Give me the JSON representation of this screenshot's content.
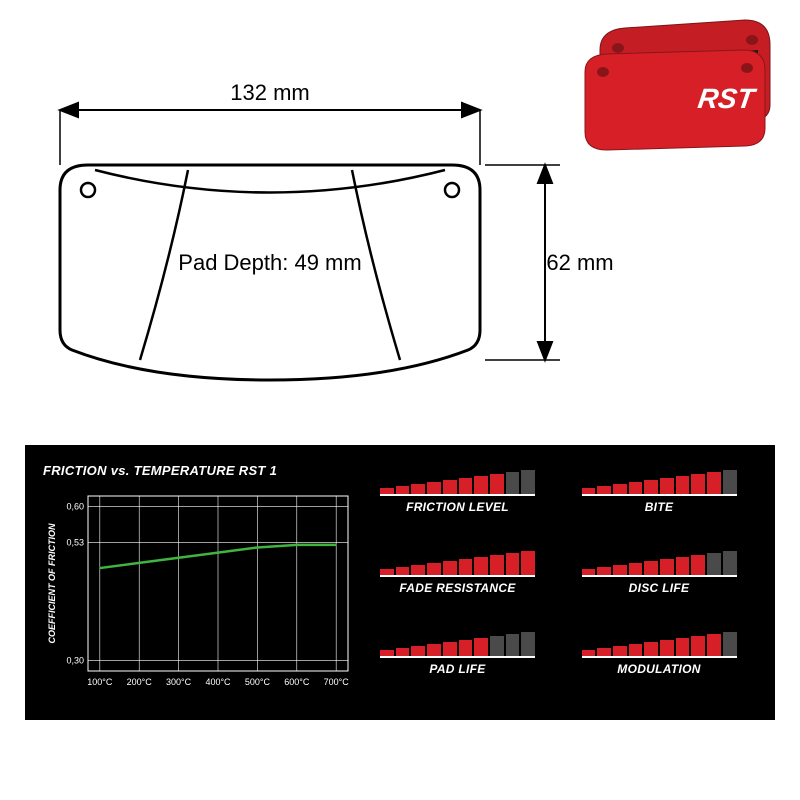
{
  "product": {
    "brand_text": "RST",
    "pad_color": "#d61f26",
    "pad_dark": "#a01a1f",
    "friction_color": "#1a1a1a"
  },
  "diagram": {
    "width_label": "132 mm",
    "height_label": "62 mm",
    "depth_label": "Pad Depth: 49 mm",
    "stroke": "#000000",
    "stroke_width": 2.5
  },
  "chart": {
    "title": "FRICTION vs. TEMPERATURE RST 1",
    "y_axis_label": "COEFFICIENT OF FRICTION",
    "y_ticks": [
      "0,30",
      "0,53",
      "0,60"
    ],
    "y_tick_vals": [
      0.3,
      0.53,
      0.6
    ],
    "x_ticks": [
      "100°C",
      "200°C",
      "300°C",
      "400°C",
      "500°C",
      "600°C",
      "700°C"
    ],
    "line_color": "#3fb43f",
    "grid_color": "#ffffff",
    "data": [
      {
        "x": 100,
        "y": 0.48
      },
      {
        "x": 200,
        "y": 0.49
      },
      {
        "x": 300,
        "y": 0.5
      },
      {
        "x": 400,
        "y": 0.51
      },
      {
        "x": 500,
        "y": 0.52
      },
      {
        "x": 600,
        "y": 0.525
      },
      {
        "x": 700,
        "y": 0.525
      }
    ],
    "y_range": [
      0.28,
      0.62
    ]
  },
  "ratings": {
    "bar_count": 10,
    "bar_heights": [
      6,
      8,
      10,
      12,
      14,
      16,
      18,
      20,
      22,
      24
    ],
    "active_color": "#d61f26",
    "inactive_color": "#4a4a4a",
    "items": [
      {
        "label": "FRICTION LEVEL",
        "value": 8
      },
      {
        "label": "BITE",
        "value": 9
      },
      {
        "label": "FADE RESISTANCE",
        "value": 10
      },
      {
        "label": "DISC LIFE",
        "value": 8
      },
      {
        "label": "PAD LIFE",
        "value": 7
      },
      {
        "label": "MODULATION",
        "value": 9
      }
    ]
  }
}
